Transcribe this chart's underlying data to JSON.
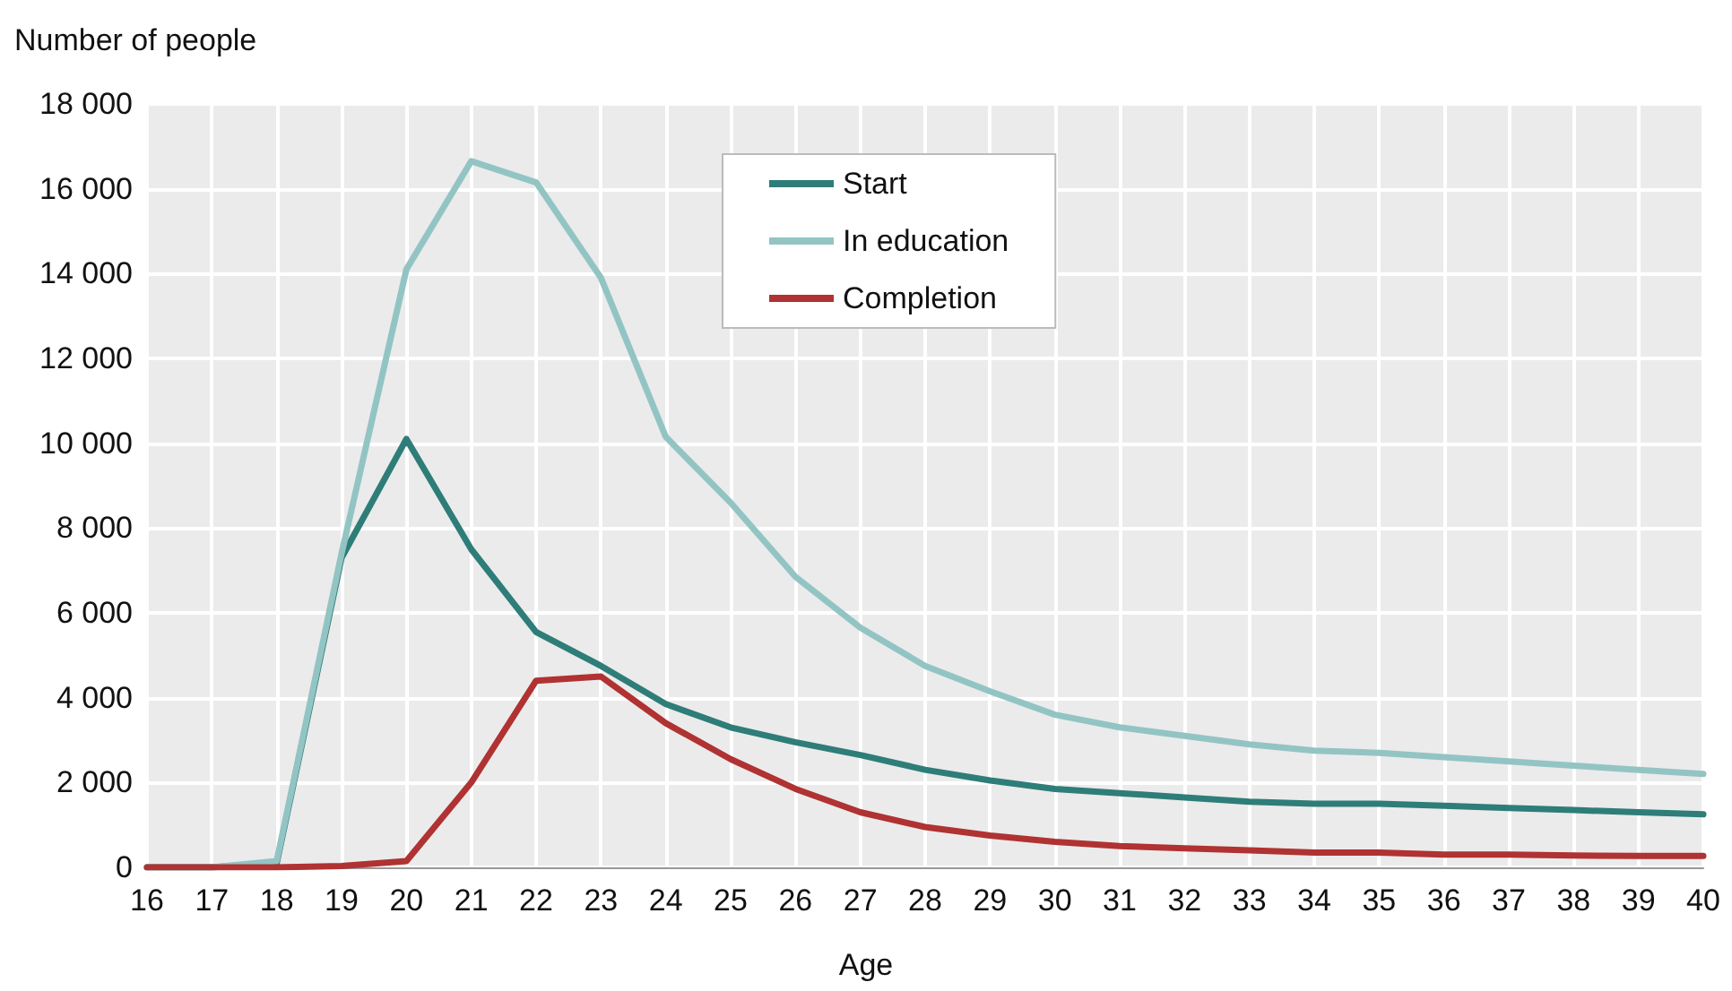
{
  "chart_data": {
    "type": "line",
    "ylabel": "Number of people",
    "xlabel": "Age",
    "categories": [
      "16",
      "17",
      "18",
      "19",
      "20",
      "21",
      "22",
      "23",
      "24",
      "25",
      "26",
      "27",
      "28",
      "29",
      "30",
      "31",
      "32",
      "33",
      "34",
      "35",
      "36",
      "37",
      "38",
      "39",
      "40"
    ],
    "series": [
      {
        "name": "Start",
        "color": "#2e7d78",
        "values": [
          0,
          0,
          100,
          7300,
          10100,
          7500,
          5550,
          4750,
          3850,
          3300,
          2950,
          2650,
          2300,
          2050,
          1850,
          1750,
          1650,
          1550,
          1500,
          1500,
          1450,
          1400,
          1350,
          1300,
          1250
        ]
      },
      {
        "name": "In education",
        "color": "#93c4c4",
        "values": [
          0,
          0,
          150,
          7400,
          14100,
          16650,
          16150,
          13900,
          10150,
          8600,
          6850,
          5650,
          4750,
          4150,
          3600,
          3300,
          3100,
          2900,
          2750,
          2700,
          2600,
          2500,
          2400,
          2300,
          2200
        ]
      },
      {
        "name": "Completion",
        "color": "#b03232",
        "values": [
          0,
          0,
          0,
          30,
          150,
          2000,
          4400,
          4500,
          3400,
          2550,
          1850,
          1300,
          950,
          750,
          600,
          500,
          450,
          400,
          350,
          350,
          300,
          300,
          280,
          270,
          270
        ]
      }
    ],
    "ylim": [
      0,
      18000
    ],
    "yticks": [
      {
        "value": 0,
        "label": "0"
      },
      {
        "value": 2000,
        "label": "2 000"
      },
      {
        "value": 4000,
        "label": "4 000"
      },
      {
        "value": 6000,
        "label": "6 000"
      },
      {
        "value": 8000,
        "label": "8 000"
      },
      {
        "value": 10000,
        "label": "10 000"
      },
      {
        "value": 12000,
        "label": "12 000"
      },
      {
        "value": 14000,
        "label": "14 000"
      },
      {
        "value": 16000,
        "label": "16 000"
      },
      {
        "value": 18000,
        "label": "18 000"
      }
    ],
    "grid": true,
    "legend": "top",
    "marker": "none",
    "line_style": "solid"
  }
}
